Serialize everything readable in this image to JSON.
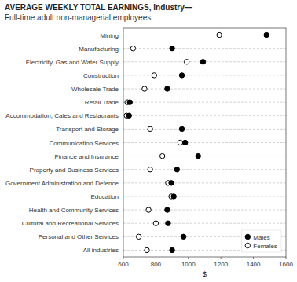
{
  "chart_data": {
    "type": "dot",
    "title": "AVERAGE WEEKLY TOTAL EARNINGS, Industry—",
    "subtitle": "Full-time adult non-managerial employees",
    "orientation": "horizontal",
    "categories": [
      "Mining",
      "Manufacturing",
      "Electricity, Gas and Water Supply",
      "Construction",
      "Wholesale Trade",
      "Retail Trade",
      "Accommodation, Cafes and Restaurants",
      "Transport and Storage",
      "Communication Services",
      "Finance and Insurance",
      "Property and Business Services",
      "Government Administration and Defence",
      "Education",
      "Health and Community Services",
      "Cultural and Recreational Services",
      "Personal and Other Services",
      "All industries"
    ],
    "series": [
      {
        "name": "Males",
        "color": "black",
        "marker": "circle",
        "values": [
          1480,
          900,
          1090,
          960,
          870,
          640,
          635,
          960,
          980,
          1060,
          930,
          895,
          910,
          870,
          875,
          970,
          900
        ]
      },
      {
        "name": "Females",
        "color": "black",
        "marker": "open-circle",
        "values": [
          1190,
          660,
          990,
          790,
          730,
          625,
          620,
          765,
          950,
          840,
          765,
          875,
          895,
          755,
          800,
          695,
          745
        ]
      }
    ],
    "xlabel": "$",
    "xlim": [
      600,
      1600
    ],
    "xticks": [
      600,
      800,
      1000,
      1200,
      1400,
      1600
    ],
    "grid": true,
    "legend": "lower right"
  }
}
